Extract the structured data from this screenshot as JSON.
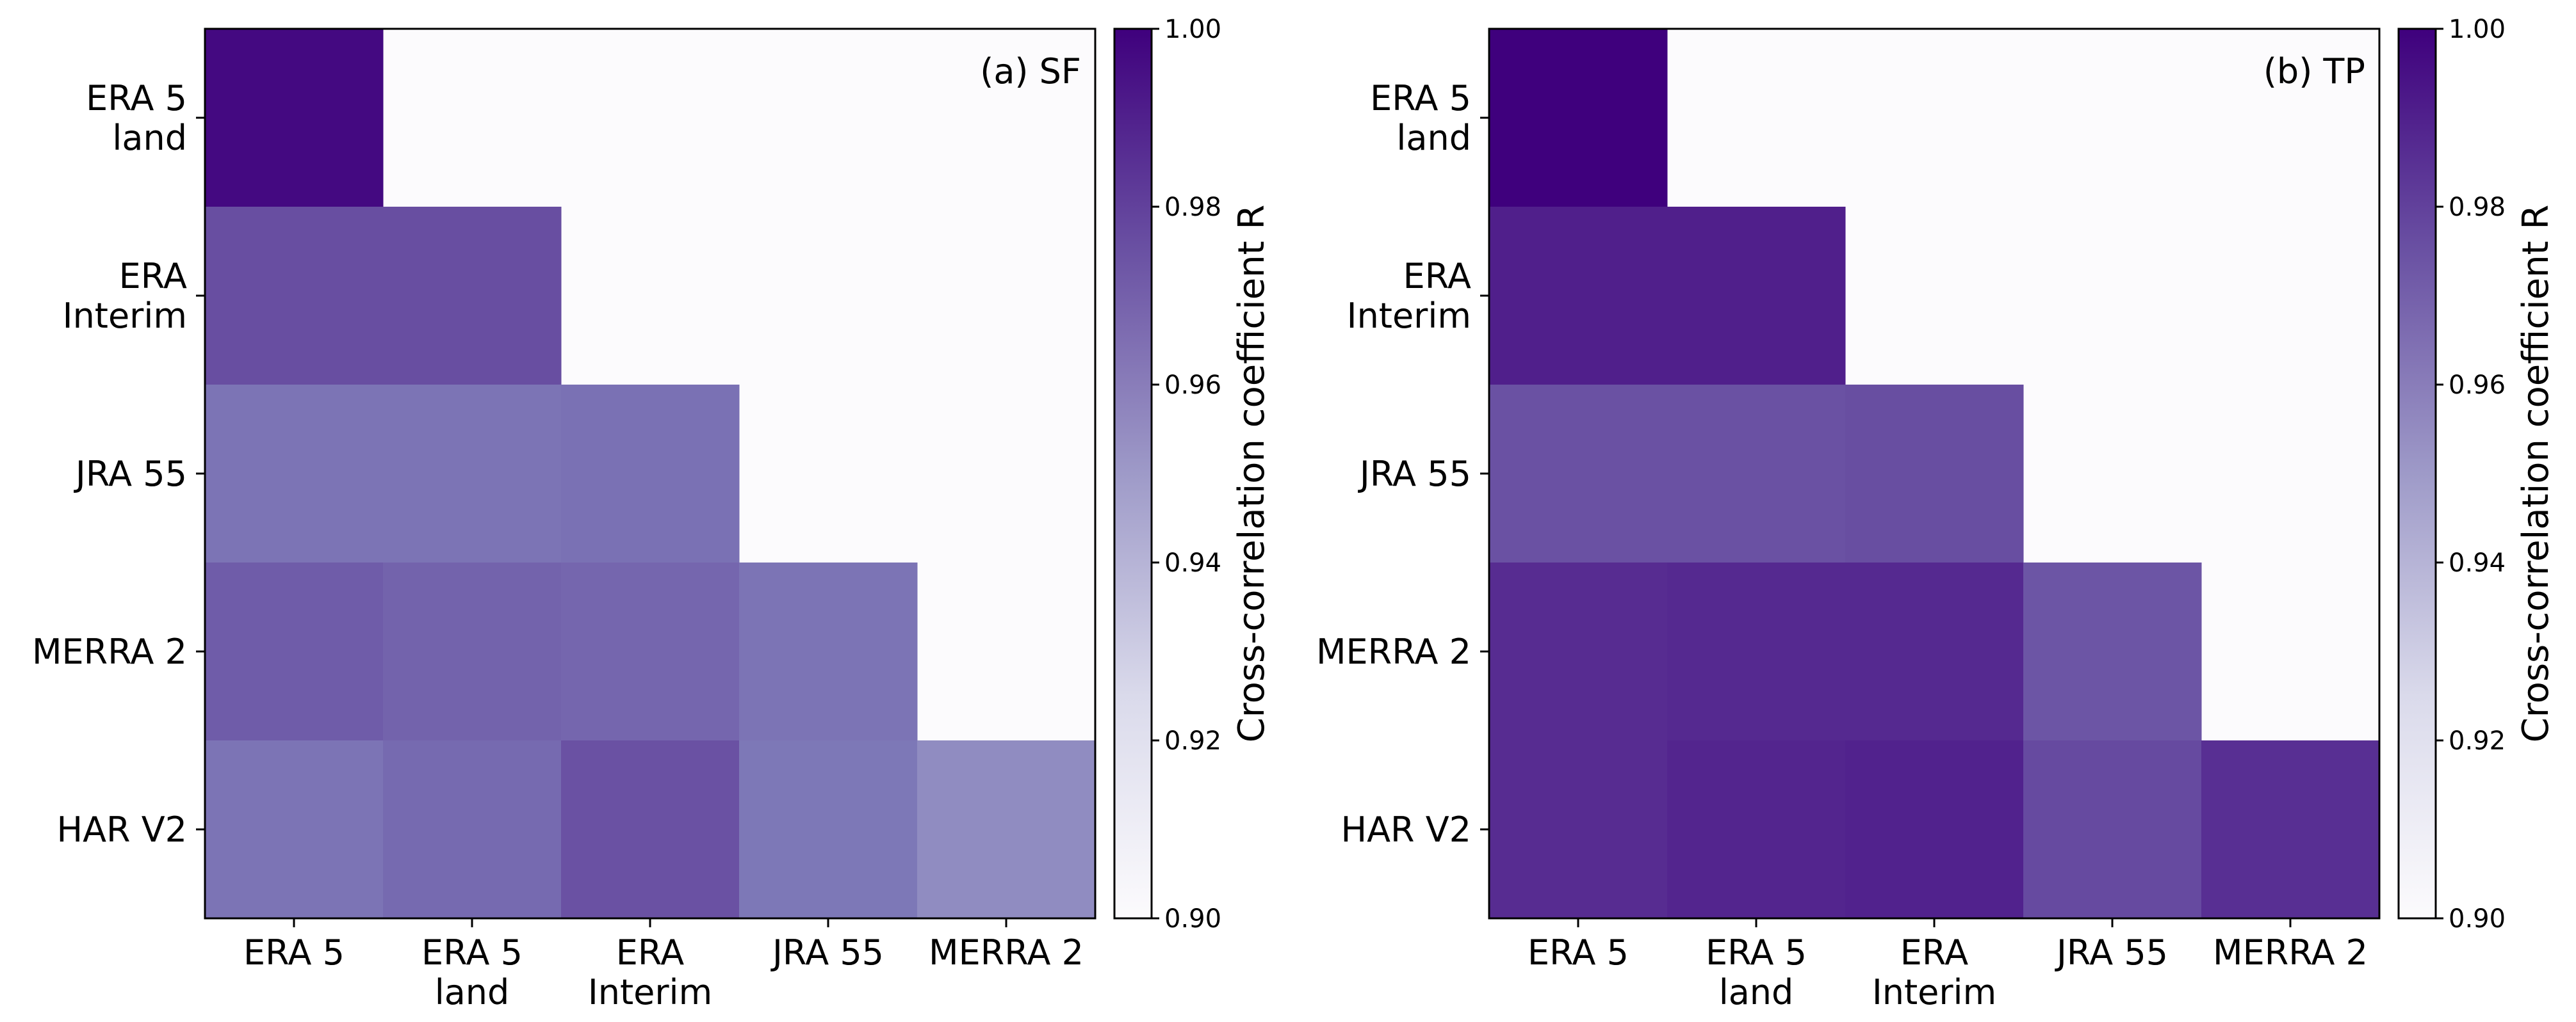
{
  "chart_data": [
    {
      "type": "heatmap",
      "panel_label": "(a) SF",
      "rows": [
        "ERA 5 land",
        "ERA Interim",
        "JRA 55",
        "MERRA 2",
        "HAR V2"
      ],
      "row_labels": [
        [
          "ERA 5",
          "land"
        ],
        [
          "ERA",
          "Interim"
        ],
        [
          "JRA 55"
        ],
        [
          "MERRA 2"
        ],
        [
          "HAR V2"
        ]
      ],
      "columns": [
        "ERA 5",
        "ERA 5 land",
        "ERA Interim",
        "JRA 55",
        "MERRA 2"
      ],
      "column_labels": [
        [
          "ERA 5"
        ],
        [
          "ERA 5",
          "land"
        ],
        [
          "ERA",
          "Interim"
        ],
        [
          "JRA 55"
        ],
        [
          "MERRA 2"
        ]
      ],
      "values": [
        [
          0.997,
          null,
          null,
          null,
          null
        ],
        [
          0.976,
          0.976,
          null,
          null,
          null
        ],
        [
          0.965,
          0.965,
          0.966,
          null,
          null
        ],
        [
          0.972,
          0.97,
          0.969,
          0.965,
          null
        ],
        [
          0.965,
          0.968,
          0.975,
          0.964,
          0.956
        ]
      ],
      "empty_value": 0.9,
      "colorbar": {
        "label": "Cross-correlation coefficient R",
        "vmin": 0.9,
        "vmax": 1.0,
        "ticks": [
          "0.90",
          "0.92",
          "0.94",
          "0.96",
          "0.98",
          "1.00"
        ]
      }
    },
    {
      "type": "heatmap",
      "panel_label": "(b) TP",
      "rows": [
        "ERA 5 land",
        "ERA Interim",
        "JRA 55",
        "MERRA 2",
        "HAR V2"
      ],
      "row_labels": [
        [
          "ERA 5",
          "land"
        ],
        [
          "ERA",
          "Interim"
        ],
        [
          "JRA 55"
        ],
        [
          "MERRA 2"
        ],
        [
          "HAR V2"
        ]
      ],
      "columns": [
        "ERA 5",
        "ERA 5 land",
        "ERA Interim",
        "JRA 55",
        "MERRA 2"
      ],
      "column_labels": [
        [
          "ERA 5"
        ],
        [
          "ERA 5",
          "land"
        ],
        [
          "ERA",
          "Interim"
        ],
        [
          "JRA 55"
        ],
        [
          "MERRA 2"
        ]
      ],
      "values": [
        [
          1.0,
          null,
          null,
          null,
          null
        ],
        [
          0.99,
          0.99,
          null,
          null,
          null
        ],
        [
          0.975,
          0.975,
          0.976,
          null,
          null
        ],
        [
          0.986,
          0.987,
          0.987,
          0.974,
          null
        ],
        [
          0.986,
          0.988,
          0.989,
          0.977,
          0.985
        ]
      ],
      "empty_value": 0.9,
      "colorbar": {
        "label": "Cross-correlation coefficient R",
        "vmin": 0.9,
        "vmax": 1.0,
        "ticks": [
          "0.90",
          "0.92",
          "0.94",
          "0.96",
          "0.98",
          "1.00"
        ]
      }
    }
  ]
}
